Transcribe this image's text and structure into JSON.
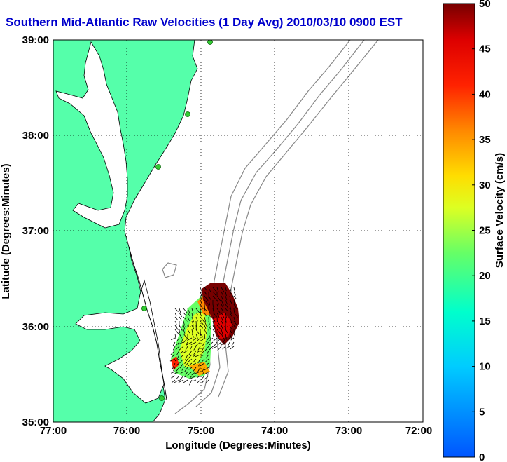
{
  "title": "Southern Mid-Atlantic Raw Velocities (1 Day Avg) 2010/03/10 0900 EST",
  "x_axis": {
    "label": "Longitude (Degrees:Minutes)",
    "ticks": [
      "77:00",
      "76:00",
      "75:00",
      "74:00",
      "73:00",
      "72:00"
    ]
  },
  "y_axis": {
    "label": "Latitude (Degrees:Minutes)",
    "ticks": [
      "39:00",
      "38:00",
      "37:00",
      "36:00",
      "35:00"
    ]
  },
  "colorbar": {
    "label": "Surface Velocity (cm/s)",
    "ticks": [
      "50",
      "45",
      "40",
      "35",
      "30",
      "25",
      "20",
      "15",
      "10",
      "5",
      "0"
    ],
    "min": 0,
    "max": 50
  },
  "colors": {
    "land": "#55ffaa",
    "title": "#0000cc",
    "station": "#33cc33",
    "bathymetry": "#888888"
  }
}
